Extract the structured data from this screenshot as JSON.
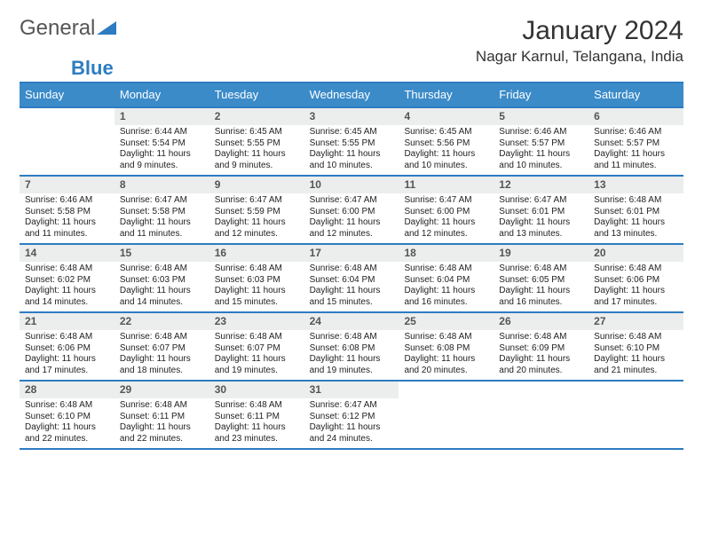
{
  "logo": {
    "word1": "General",
    "word2": "Blue",
    "tri_color": "#2d7cc1"
  },
  "title": {
    "month": "January 2024",
    "location": "Nagar Karnul, Telangana, India"
  },
  "header_bg": "#3b8bc9",
  "accent": "#2d7cc1",
  "day_headers": [
    "Sunday",
    "Monday",
    "Tuesday",
    "Wednesday",
    "Thursday",
    "Friday",
    "Saturday"
  ],
  "weeks": [
    [
      {
        "n": "",
        "sr": "",
        "ss": "",
        "dl": ""
      },
      {
        "n": "1",
        "sr": "Sunrise: 6:44 AM",
        "ss": "Sunset: 5:54 PM",
        "dl": "Daylight: 11 hours and 9 minutes."
      },
      {
        "n": "2",
        "sr": "Sunrise: 6:45 AM",
        "ss": "Sunset: 5:55 PM",
        "dl": "Daylight: 11 hours and 9 minutes."
      },
      {
        "n": "3",
        "sr": "Sunrise: 6:45 AM",
        "ss": "Sunset: 5:55 PM",
        "dl": "Daylight: 11 hours and 10 minutes."
      },
      {
        "n": "4",
        "sr": "Sunrise: 6:45 AM",
        "ss": "Sunset: 5:56 PM",
        "dl": "Daylight: 11 hours and 10 minutes."
      },
      {
        "n": "5",
        "sr": "Sunrise: 6:46 AM",
        "ss": "Sunset: 5:57 PM",
        "dl": "Daylight: 11 hours and 10 minutes."
      },
      {
        "n": "6",
        "sr": "Sunrise: 6:46 AM",
        "ss": "Sunset: 5:57 PM",
        "dl": "Daylight: 11 hours and 11 minutes."
      }
    ],
    [
      {
        "n": "7",
        "sr": "Sunrise: 6:46 AM",
        "ss": "Sunset: 5:58 PM",
        "dl": "Daylight: 11 hours and 11 minutes."
      },
      {
        "n": "8",
        "sr": "Sunrise: 6:47 AM",
        "ss": "Sunset: 5:58 PM",
        "dl": "Daylight: 11 hours and 11 minutes."
      },
      {
        "n": "9",
        "sr": "Sunrise: 6:47 AM",
        "ss": "Sunset: 5:59 PM",
        "dl": "Daylight: 11 hours and 12 minutes."
      },
      {
        "n": "10",
        "sr": "Sunrise: 6:47 AM",
        "ss": "Sunset: 6:00 PM",
        "dl": "Daylight: 11 hours and 12 minutes."
      },
      {
        "n": "11",
        "sr": "Sunrise: 6:47 AM",
        "ss": "Sunset: 6:00 PM",
        "dl": "Daylight: 11 hours and 12 minutes."
      },
      {
        "n": "12",
        "sr": "Sunrise: 6:47 AM",
        "ss": "Sunset: 6:01 PM",
        "dl": "Daylight: 11 hours and 13 minutes."
      },
      {
        "n": "13",
        "sr": "Sunrise: 6:48 AM",
        "ss": "Sunset: 6:01 PM",
        "dl": "Daylight: 11 hours and 13 minutes."
      }
    ],
    [
      {
        "n": "14",
        "sr": "Sunrise: 6:48 AM",
        "ss": "Sunset: 6:02 PM",
        "dl": "Daylight: 11 hours and 14 minutes."
      },
      {
        "n": "15",
        "sr": "Sunrise: 6:48 AM",
        "ss": "Sunset: 6:03 PM",
        "dl": "Daylight: 11 hours and 14 minutes."
      },
      {
        "n": "16",
        "sr": "Sunrise: 6:48 AM",
        "ss": "Sunset: 6:03 PM",
        "dl": "Daylight: 11 hours and 15 minutes."
      },
      {
        "n": "17",
        "sr": "Sunrise: 6:48 AM",
        "ss": "Sunset: 6:04 PM",
        "dl": "Daylight: 11 hours and 15 minutes."
      },
      {
        "n": "18",
        "sr": "Sunrise: 6:48 AM",
        "ss": "Sunset: 6:04 PM",
        "dl": "Daylight: 11 hours and 16 minutes."
      },
      {
        "n": "19",
        "sr": "Sunrise: 6:48 AM",
        "ss": "Sunset: 6:05 PM",
        "dl": "Daylight: 11 hours and 16 minutes."
      },
      {
        "n": "20",
        "sr": "Sunrise: 6:48 AM",
        "ss": "Sunset: 6:06 PM",
        "dl": "Daylight: 11 hours and 17 minutes."
      }
    ],
    [
      {
        "n": "21",
        "sr": "Sunrise: 6:48 AM",
        "ss": "Sunset: 6:06 PM",
        "dl": "Daylight: 11 hours and 17 minutes."
      },
      {
        "n": "22",
        "sr": "Sunrise: 6:48 AM",
        "ss": "Sunset: 6:07 PM",
        "dl": "Daylight: 11 hours and 18 minutes."
      },
      {
        "n": "23",
        "sr": "Sunrise: 6:48 AM",
        "ss": "Sunset: 6:07 PM",
        "dl": "Daylight: 11 hours and 19 minutes."
      },
      {
        "n": "24",
        "sr": "Sunrise: 6:48 AM",
        "ss": "Sunset: 6:08 PM",
        "dl": "Daylight: 11 hours and 19 minutes."
      },
      {
        "n": "25",
        "sr": "Sunrise: 6:48 AM",
        "ss": "Sunset: 6:08 PM",
        "dl": "Daylight: 11 hours and 20 minutes."
      },
      {
        "n": "26",
        "sr": "Sunrise: 6:48 AM",
        "ss": "Sunset: 6:09 PM",
        "dl": "Daylight: 11 hours and 20 minutes."
      },
      {
        "n": "27",
        "sr": "Sunrise: 6:48 AM",
        "ss": "Sunset: 6:10 PM",
        "dl": "Daylight: 11 hours and 21 minutes."
      }
    ],
    [
      {
        "n": "28",
        "sr": "Sunrise: 6:48 AM",
        "ss": "Sunset: 6:10 PM",
        "dl": "Daylight: 11 hours and 22 minutes."
      },
      {
        "n": "29",
        "sr": "Sunrise: 6:48 AM",
        "ss": "Sunset: 6:11 PM",
        "dl": "Daylight: 11 hours and 22 minutes."
      },
      {
        "n": "30",
        "sr": "Sunrise: 6:48 AM",
        "ss": "Sunset: 6:11 PM",
        "dl": "Daylight: 11 hours and 23 minutes."
      },
      {
        "n": "31",
        "sr": "Sunrise: 6:47 AM",
        "ss": "Sunset: 6:12 PM",
        "dl": "Daylight: 11 hours and 24 minutes."
      },
      {
        "n": "",
        "sr": "",
        "ss": "",
        "dl": ""
      },
      {
        "n": "",
        "sr": "",
        "ss": "",
        "dl": ""
      },
      {
        "n": "",
        "sr": "",
        "ss": "",
        "dl": ""
      }
    ]
  ]
}
